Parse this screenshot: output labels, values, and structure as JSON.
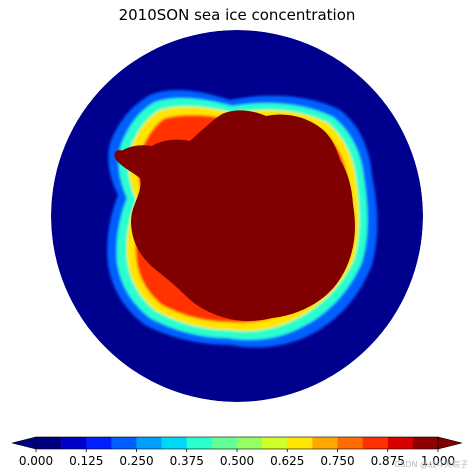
{
  "map": {
    "title": "2010SON sea ice concentration",
    "projection": "south-polar-stereographic",
    "colors": {
      "ocean": "#00008f",
      "land": "#800000"
    }
  },
  "colorbar": {
    "ticks": [
      "0.000",
      "0.125",
      "0.250",
      "0.375",
      "0.500",
      "0.625",
      "0.750",
      "0.875",
      "1.000"
    ],
    "bins": [
      "#00007f",
      "#0000c8",
      "#0020ff",
      "#0060ff",
      "#00a0ff",
      "#00d8f8",
      "#2affce",
      "#62ff95",
      "#95ff62",
      "#ceff2a",
      "#ffe500",
      "#ffa800",
      "#ff6c00",
      "#ff3000",
      "#d90000",
      "#900000"
    ],
    "extend": "both"
  },
  "watermark": "CSDN @战斗大粽子"
}
